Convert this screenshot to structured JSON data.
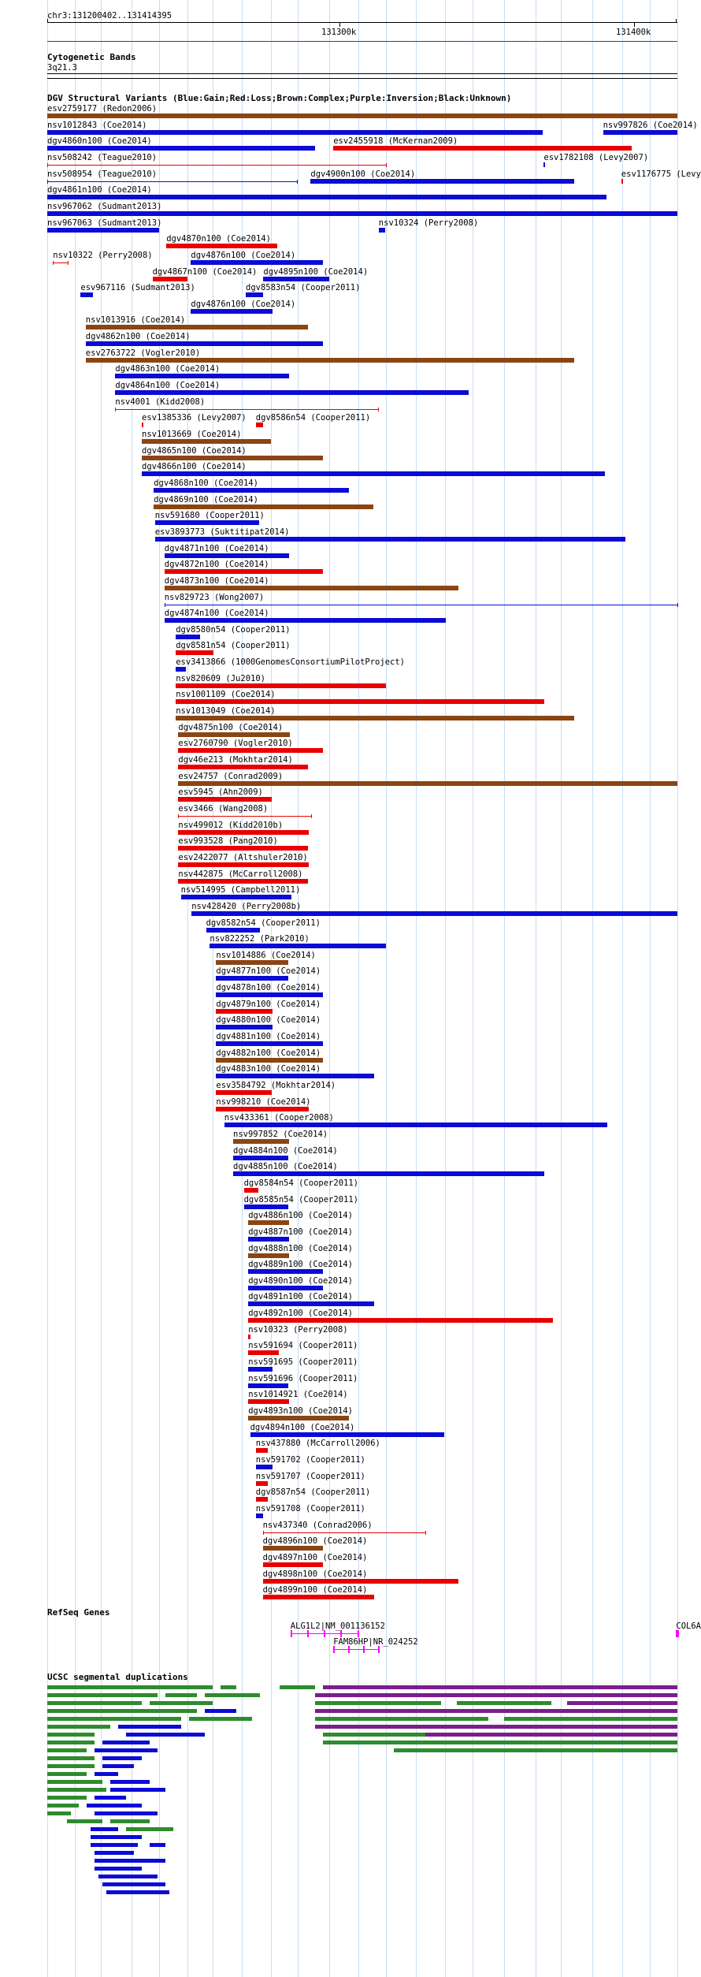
{
  "colors": {
    "gain": "#0b0bd6",
    "loss": "#e80000",
    "complex": "#8b4513",
    "inversion": "#7a1e8c",
    "unknown": "#000000",
    "segdup": "#2e8b2e",
    "gene": "#ff00ff",
    "grid": "#c8dcf4"
  },
  "ruler": {
    "position": "chr3:131200402..131414395",
    "tick_labels": [
      "131300k",
      "131400k"
    ]
  },
  "cytoband": {
    "title": "Cytogenetic Bands",
    "band": "3q21.3"
  },
  "dgv": {
    "title": "DGV Structural Variants (Blue:Gain;Red:Loss;Brown:Complex;Purple:Inversion;Black:Unknown)",
    "features": [
      {
        "label": "esv2759177 (Redon2006)",
        "s": 0.0,
        "e": 1.0,
        "t": "complex"
      },
      {
        "label": "nsv1012843 (Coe2014)",
        "s": 0.0,
        "e": 0.786,
        "t": "gain"
      },
      {
        "label": "nsv997826 (Coe2014)",
        "s": 0.882,
        "e": 1.0,
        "t": "gain"
      },
      {
        "label": "dgv4860n100 (Coe2014)",
        "s": 0.0,
        "e": 0.425,
        "t": "gain"
      },
      {
        "label": "esv2455918 (McKernan2009)",
        "s": 0.454,
        "e": 0.928,
        "t": "loss"
      },
      {
        "label": "nsv508242 (Teague2010)",
        "s": 0.0,
        "e": 0.537,
        "t": "lossline"
      },
      {
        "label": "esv1782108 (Levy2007)",
        "s": 0.788,
        "e": 0.79,
        "t": "gain"
      },
      {
        "label": "nsv508954 (Teague2010)",
        "s": 0.0,
        "e": 0.396,
        "t": "gainline"
      },
      {
        "label": "dgv4900n100 (Coe2014)",
        "s": 0.418,
        "e": 0.836,
        "t": "gain"
      },
      {
        "label": "esv1176775 (Levy2007)",
        "s": 0.911,
        "e": 0.913,
        "t": "loss"
      },
      {
        "label": "dgv4861n100 (Coe2014)",
        "s": 0.0,
        "e": 0.888,
        "t": "gain"
      },
      {
        "label": "nsv967062 (Sudmant2013)",
        "s": 0.0,
        "e": 1.0,
        "t": "gain"
      },
      {
        "label": "nsv967063 (Sudmant2013)",
        "s": 0.0,
        "e": 0.178,
        "t": "gain"
      },
      {
        "label": "dgv4870n100 (Coe2014)",
        "s": 0.189,
        "e": 0.365,
        "t": "loss"
      },
      {
        "label": "nsv10324 (Perry2008)",
        "s": 0.526,
        "e": 0.536,
        "t": "gain"
      },
      {
        "label": "nsv10322 (Perry2008)",
        "s": 0.009,
        "e": 0.033,
        "t": "lossline"
      },
      {
        "label": "dgv4867n100 (Coe2014)",
        "s": 0.167,
        "e": 0.223,
        "t": "loss"
      },
      {
        "label": "dgv4876n100 (Coe2014)",
        "s": 0.228,
        "e": 0.437,
        "t": "gain"
      },
      {
        "label": "esv967116 (Sudmant2013)",
        "s": 0.053,
        "e": 0.073,
        "t": "gain"
      },
      {
        "label": "dgv4876n100 (Coe2014)",
        "s": 0.228,
        "e": 0.357,
        "t": "gain"
      },
      {
        "label": "nsv1013916 (Coe2014)",
        "s": 0.061,
        "e": 0.414,
        "t": "complex"
      },
      {
        "label": "dgv4862n100 (Coe2014)",
        "s": 0.061,
        "e": 0.437,
        "t": "gain"
      },
      {
        "label": "esv2763722 (Vogler2010)",
        "s": 0.061,
        "e": 0.836,
        "t": "complex"
      },
      {
        "label": "dgv4863n100 (Coe2014)",
        "s": 0.108,
        "e": 0.384,
        "t": "gain"
      },
      {
        "label": "dgv4864n100 (Coe2014)",
        "s": 0.108,
        "e": 0.669,
        "t": "gain"
      },
      {
        "label": "nsv4001 (Kidd2008)",
        "s": 0.108,
        "e": 0.525,
        "t": "lossline"
      },
      {
        "label": "esv1385336 (Levy2007)",
        "s": 0.15,
        "e": 0.152,
        "t": "loss"
      },
      {
        "label": "dgv8583n54 (Cooper2011)",
        "s": 0.315,
        "e": 0.343,
        "t": "gain"
      },
      {
        "label": "nsv1013669 (Coe2014)",
        "s": 0.15,
        "e": 0.355,
        "t": "complex"
      },
      {
        "label": "dgv4865n100 (Coe2014)",
        "s": 0.15,
        "e": 0.437,
        "t": "complex"
      },
      {
        "label": "dgv4866n100 (Coe2014)",
        "s": 0.15,
        "e": 0.885,
        "t": "gain"
      },
      {
        "label": "dgv4868n100 (Coe2014)",
        "s": 0.169,
        "e": 0.479,
        "t": "gain"
      },
      {
        "label": "dgv4869n100 (Coe2014)",
        "s": 0.169,
        "e": 0.518,
        "t": "complex"
      },
      {
        "label": "nsv591680 (Cooper2011)",
        "s": 0.171,
        "e": 0.336,
        "t": "gain"
      },
      {
        "label": "dgv4895n100 (Coe2014)",
        "s": 0.343,
        "e": 0.447,
        "t": "gain"
      },
      {
        "label": "esv3893773 (Suktitipat2014)",
        "s": 0.171,
        "e": 0.918,
        "t": "gain"
      },
      {
        "label": "dgv4871n100 (Coe2014)",
        "s": 0.186,
        "e": 0.384,
        "t": "gain"
      },
      {
        "label": "dgv4872n100 (Coe2014)",
        "s": 0.186,
        "e": 0.437,
        "t": "loss"
      },
      {
        "label": "dgv4873n100 (Coe2014)",
        "s": 0.186,
        "e": 0.653,
        "t": "complex"
      },
      {
        "label": "nsv829723 (Wong2007)",
        "s": 0.186,
        "e": 1.0,
        "t": "gainline"
      },
      {
        "label": "dgv4874n100 (Coe2014)",
        "s": 0.186,
        "e": 0.632,
        "t": "gain"
      },
      {
        "label": "dgv8580n54 (Cooper2011)",
        "s": 0.204,
        "e": 0.243,
        "t": "gain"
      },
      {
        "label": "dgv8581n54 (Cooper2011)",
        "s": 0.204,
        "e": 0.264,
        "t": "loss"
      },
      {
        "label": "esv3413866 (1000GenomesConsortiumPilotProject)",
        "s": 0.204,
        "e": 0.22,
        "t": "gain"
      },
      {
        "label": "nsv820609 (Ju2010)",
        "s": 0.204,
        "e": 0.537,
        "t": "loss"
      },
      {
        "label": "nsv1001109 (Coe2014)",
        "s": 0.204,
        "e": 0.789,
        "t": "loss"
      },
      {
        "label": "nsv1013049 (Coe2014)",
        "s": 0.204,
        "e": 0.836,
        "t": "complex"
      },
      {
        "label": "dgv4875n100 (Coe2014)",
        "s": 0.208,
        "e": 0.385,
        "t": "complex"
      },
      {
        "label": "esv2760790 (Vogler2010)",
        "s": 0.208,
        "e": 0.437,
        "t": "loss"
      },
      {
        "label": "dgv46e213 (Mokhtar2014)",
        "s": 0.208,
        "e": 0.414,
        "t": "loss"
      },
      {
        "label": "esv24757 (Conrad2009)",
        "s": 0.208,
        "e": 1.0,
        "t": "complex"
      },
      {
        "label": "esv5945 (Ahn2009)",
        "s": 0.208,
        "e": 0.356,
        "t": "loss"
      },
      {
        "label": "esv3466 (Wang2008)",
        "s": 0.208,
        "e": 0.419,
        "t": "lossline"
      },
      {
        "label": "nsv499012 (Kidd2010b)",
        "s": 0.208,
        "e": 0.415,
        "t": "loss"
      },
      {
        "label": "esv993528 (Pang2010)",
        "s": 0.208,
        "e": 0.414,
        "t": "loss"
      },
      {
        "label": "esv2422077 (Altshuler2010)",
        "s": 0.208,
        "e": 0.415,
        "t": "loss"
      },
      {
        "label": "nsv442875 (McCarroll2008)",
        "s": 0.208,
        "e": 0.414,
        "t": "loss"
      },
      {
        "label": "nsv514995 (Campbell2011)",
        "s": 0.212,
        "e": 0.388,
        "t": "gain"
      },
      {
        "label": "nsv428420 (Perry2008b)",
        "s": 0.229,
        "e": 1.0,
        "t": "gain"
      },
      {
        "label": "dgv8582n54 (Cooper2011)",
        "s": 0.252,
        "e": 0.338,
        "t": "gain"
      },
      {
        "label": "nsv822252 (Park2010)",
        "s": 0.258,
        "e": 0.537,
        "t": "gain"
      },
      {
        "label": "nsv1014886 (Coe2014)",
        "s": 0.268,
        "e": 0.383,
        "t": "complex"
      },
      {
        "label": "dgv4877n100 (Coe2014)",
        "s": 0.268,
        "e": 0.382,
        "t": "gain"
      },
      {
        "label": "dgv4878n100 (Coe2014)",
        "s": 0.268,
        "e": 0.437,
        "t": "gain"
      },
      {
        "label": "dgv4879n100 (Coe2014)",
        "s": 0.268,
        "e": 0.358,
        "t": "loss"
      },
      {
        "label": "dgv4880n100 (Coe2014)",
        "s": 0.268,
        "e": 0.357,
        "t": "gain"
      },
      {
        "label": "dgv4881n100 (Coe2014)",
        "s": 0.268,
        "e": 0.437,
        "t": "gain"
      },
      {
        "label": "dgv4882n100 (Coe2014)",
        "s": 0.268,
        "e": 0.437,
        "t": "complex"
      },
      {
        "label": "dgv4883n100 (Coe2014)",
        "s": 0.268,
        "e": 0.519,
        "t": "gain"
      },
      {
        "label": "esv3584792 (Mokhtar2014)",
        "s": 0.268,
        "e": 0.356,
        "t": "loss"
      },
      {
        "label": "nsv998210 (Coe2014)",
        "s": 0.268,
        "e": 0.415,
        "t": "loss"
      },
      {
        "label": "nsv433361 (Cooper2008)",
        "s": 0.281,
        "e": 0.889,
        "t": "gain"
      },
      {
        "label": "nsv997852 (Coe2014)",
        "s": 0.295,
        "e": 0.384,
        "t": "complex"
      },
      {
        "label": "dgv4884n100 (Coe2014)",
        "s": 0.295,
        "e": 0.382,
        "t": "gain"
      },
      {
        "label": "dgv4885n100 (Coe2014)",
        "s": 0.295,
        "e": 0.789,
        "t": "gain"
      },
      {
        "label": "dgv8584n54 (Cooper2011)",
        "s": 0.312,
        "e": 0.335,
        "t": "loss"
      },
      {
        "label": "dgv8585n54 (Cooper2011)",
        "s": 0.312,
        "e": 0.383,
        "t": "gain"
      },
      {
        "label": "dgv4886n100 (Coe2014)",
        "s": 0.319,
        "e": 0.384,
        "t": "complex"
      },
      {
        "label": "dgv4887n100 (Coe2014)",
        "s": 0.319,
        "e": 0.384,
        "t": "gain"
      },
      {
        "label": "dgv4888n100 (Coe2014)",
        "s": 0.319,
        "e": 0.384,
        "t": "complex"
      },
      {
        "label": "dgv4889n100 (Coe2014)",
        "s": 0.319,
        "e": 0.437,
        "t": "gain"
      },
      {
        "label": "dgv4890n100 (Coe2014)",
        "s": 0.319,
        "e": 0.437,
        "t": "gain"
      },
      {
        "label": "dgv4891n100 (Coe2014)",
        "s": 0.319,
        "e": 0.519,
        "t": "gain"
      },
      {
        "label": "dgv4892n100 (Coe2014)",
        "s": 0.319,
        "e": 0.802,
        "t": "loss"
      },
      {
        "label": "nsv10323 (Perry2008)",
        "s": 0.319,
        "e": 0.322,
        "t": "loss"
      },
      {
        "label": "nsv591694 (Cooper2011)",
        "s": 0.319,
        "e": 0.367,
        "t": "loss"
      },
      {
        "label": "nsv591695 (Cooper2011)",
        "s": 0.319,
        "e": 0.357,
        "t": "gain"
      },
      {
        "label": "nsv591696 (Cooper2011)",
        "s": 0.319,
        "e": 0.382,
        "t": "gain"
      },
      {
        "label": "nsv1014921 (Coe2014)",
        "s": 0.319,
        "e": 0.384,
        "t": "loss"
      },
      {
        "label": "dgv4893n100 (Coe2014)",
        "s": 0.319,
        "e": 0.479,
        "t": "complex"
      },
      {
        "label": "dgv4894n100 (Coe2014)",
        "s": 0.322,
        "e": 0.63,
        "t": "gain"
      },
      {
        "label": "dgv8586n54 (Cooper2011)",
        "s": 0.331,
        "e": 0.343,
        "t": "loss"
      },
      {
        "label": "nsv437880 (McCarroll2006)",
        "s": 0.331,
        "e": 0.35,
        "t": "loss"
      },
      {
        "label": "nsv591702 (Cooper2011)",
        "s": 0.331,
        "e": 0.357,
        "t": "gain"
      },
      {
        "label": "nsv591707 (Cooper2011)",
        "s": 0.331,
        "e": 0.35,
        "t": "loss"
      },
      {
        "label": "dgv8587n54 (Cooper2011)",
        "s": 0.331,
        "e": 0.35,
        "t": "loss"
      },
      {
        "label": "nsv591708 (Cooper2011)",
        "s": 0.331,
        "e": 0.343,
        "t": "gain"
      },
      {
        "label": "nsv437340 (Conrad2006)",
        "s": 0.342,
        "e": 0.6,
        "t": "lossline"
      },
      {
        "label": "dgv4896n100 (Coe2014)",
        "s": 0.342,
        "e": 0.437,
        "t": "complex"
      },
      {
        "label": "dgv4897n100 (Coe2014)",
        "s": 0.342,
        "e": 0.437,
        "t": "loss"
      },
      {
        "label": "dgv4898n100 (Coe2014)",
        "s": 0.342,
        "e": 0.653,
        "t": "loss"
      },
      {
        "label": "dgv4899n100 (Coe2014)",
        "s": 0.342,
        "e": 0.519,
        "t": "loss"
      }
    ]
  },
  "refseq": {
    "title": "RefSeq Genes",
    "genes": [
      {
        "label": "ALG1L2|NM_001136152",
        "s": 0.386,
        "e": 0.492,
        "row": 0
      },
      {
        "label": "FAM86HP|NR_024252",
        "s": 0.454,
        "e": 0.525,
        "row": 1
      },
      {
        "label": "COL6A",
        "s": 0.998,
        "e": 1.0,
        "row": 0
      }
    ]
  },
  "segdup": {
    "title": "UCSC segmental duplications"
  }
}
